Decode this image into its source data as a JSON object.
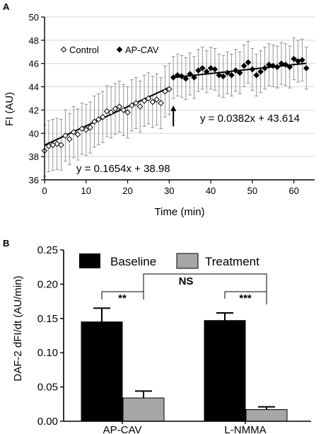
{
  "panel_a_label": "A",
  "panel_b_label": "B",
  "chart_data": [
    {
      "type": "scatter",
      "xlabel": "Time (min)",
      "ylabel": "FI (AU)",
      "xlim": [
        0,
        65
      ],
      "ylim": [
        36,
        50
      ],
      "xticks": [
        "0",
        "10",
        "20",
        "30",
        "40",
        "50",
        "60"
      ],
      "yticks": [
        "36",
        "38",
        "40",
        "42",
        "44",
        "46",
        "48",
        "50"
      ],
      "grid": "horizontal",
      "legend_position": "top-left",
      "series": [
        {
          "name": "Control",
          "marker": "open-diamond",
          "x": [
            0,
            1,
            2,
            3,
            4,
            5,
            6,
            7,
            8,
            9,
            10,
            11,
            12,
            13,
            14,
            15,
            16,
            17,
            18,
            19,
            20,
            21,
            22,
            23,
            24,
            25,
            26,
            27,
            28,
            29,
            30
          ],
          "y": [
            38.5,
            38.9,
            39.0,
            39.1,
            39.0,
            39.8,
            39.5,
            40.1,
            39.9,
            40.4,
            40.3,
            40.5,
            41.0,
            41.2,
            41.4,
            41.9,
            41.8,
            42.1,
            42.3,
            42.0,
            41.8,
            42.4,
            42.6,
            42.3,
            42.8,
            43.0,
            42.7,
            42.9,
            42.6,
            43.6,
            43.8
          ],
          "error": 2.2
        },
        {
          "name": "AP-CAV",
          "marker": "filled-diamond",
          "x": [
            31,
            32,
            33,
            34,
            35,
            36,
            37,
            38,
            39,
            40,
            41,
            42,
            43,
            44,
            45,
            46,
            47,
            48,
            49,
            50,
            51,
            52,
            53,
            54,
            55,
            56,
            57,
            58,
            59,
            60,
            61,
            62,
            63
          ],
          "y": [
            44.8,
            45.0,
            44.9,
            44.7,
            45.1,
            44.8,
            45.4,
            45.6,
            45.3,
            45.6,
            45.5,
            45.0,
            44.9,
            45.2,
            45.0,
            45.4,
            45.2,
            45.8,
            46.1,
            45.5,
            45.0,
            45.3,
            45.6,
            45.9,
            45.8,
            45.7,
            46.0,
            45.9,
            45.7,
            46.4,
            46.2,
            46.3,
            45.6
          ],
          "error": 1.8
        }
      ],
      "fits": [
        {
          "label": "y = 0.1654x + 38.98",
          "slope": 0.1654,
          "intercept": 38.98,
          "x_range": [
            0,
            30
          ]
        },
        {
          "label": "y = 0.0382x + 43.614",
          "slope": 0.0382,
          "intercept": 43.614,
          "x_range": [
            31,
            63
          ]
        }
      ],
      "annotations": [
        {
          "type": "arrow-up",
          "x": 31,
          "y_tip": 42.4,
          "y_tail": 40.6
        }
      ]
    },
    {
      "type": "bar",
      "ylabel": "DAF-2 dFI/dt (AU/min)",
      "categories": [
        "AP-CAV",
        "L-NMMA"
      ],
      "ylim": [
        0,
        0.25
      ],
      "yticks": [
        "0.00",
        "0.05",
        "0.10",
        "0.15",
        "0.20",
        "0.25"
      ],
      "legend_position": "top",
      "series": [
        {
          "name": "Baseline",
          "color": "#000000",
          "values": [
            0.145,
            0.147
          ],
          "errors": [
            0.02,
            0.011
          ]
        },
        {
          "name": "Treatment",
          "color": "#a6a6a6",
          "values": [
            0.034,
            0.017
          ],
          "errors": [
            0.01,
            0.004
          ]
        }
      ],
      "significance": [
        {
          "label": "**",
          "between": "AP-CAV Baseline vs Treatment"
        },
        {
          "label": "***",
          "between": "L-NMMA Baseline vs Treatment"
        },
        {
          "label": "NS",
          "between": "AP-CAV Treatment vs L-NMMA Treatment"
        }
      ]
    }
  ]
}
